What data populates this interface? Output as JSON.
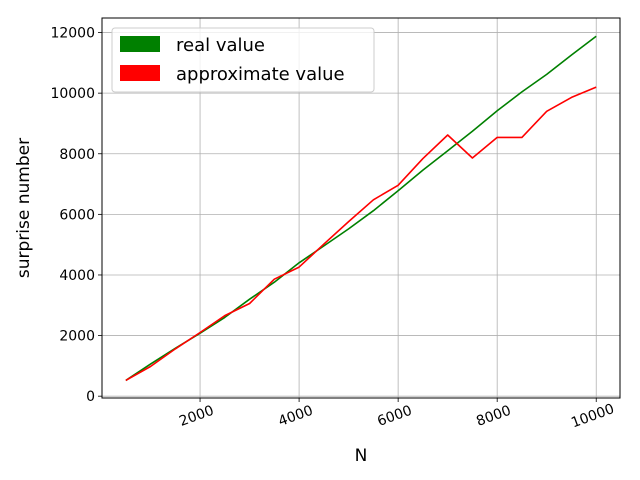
{
  "chart_data": {
    "type": "line",
    "title": "",
    "xlabel": "N",
    "ylabel": "surprise number",
    "xlim": [
      20,
      10480
    ],
    "ylim": [
      -60,
      12480
    ],
    "xticks": [
      2000,
      4000,
      6000,
      8000,
      10000
    ],
    "yticks": [
      0,
      2000,
      4000,
      6000,
      8000,
      10000,
      12000
    ],
    "xtick_labels": [
      "2000",
      "4000",
      "6000",
      "8000",
      "10000"
    ],
    "ytick_labels": [
      "0",
      "2000",
      "4000",
      "6000",
      "8000",
      "10000",
      "12000"
    ],
    "grid": true,
    "legend_position": "top-left",
    "series": [
      {
        "name": "real value",
        "color": "#008000",
        "x": [
          500,
          1000,
          1500,
          2000,
          2500,
          3000,
          3500,
          4000,
          4500,
          5000,
          5500,
          6000,
          6500,
          7000,
          7500,
          8000,
          8500,
          9000,
          9500,
          10000
        ],
        "y": [
          520,
          1060,
          1580,
          2080,
          2600,
          3200,
          3760,
          4400,
          4960,
          5520,
          6120,
          6780,
          7460,
          8100,
          8740,
          9420,
          10040,
          10620,
          11260,
          11880
        ]
      },
      {
        "name": "approximate value",
        "color": "#ff0000",
        "x": [
          500,
          1000,
          1500,
          2000,
          2500,
          3000,
          3500,
          4000,
          4500,
          5000,
          5500,
          6000,
          6500,
          7000,
          7500,
          8000,
          8500,
          9000,
          9500,
          10000
        ],
        "y": [
          520,
          980,
          1560,
          2100,
          2660,
          3060,
          3860,
          4260,
          5020,
          5760,
          6480,
          6960,
          7840,
          8620,
          7860,
          8540,
          8540,
          9400,
          9860,
          10200
        ]
      }
    ]
  }
}
